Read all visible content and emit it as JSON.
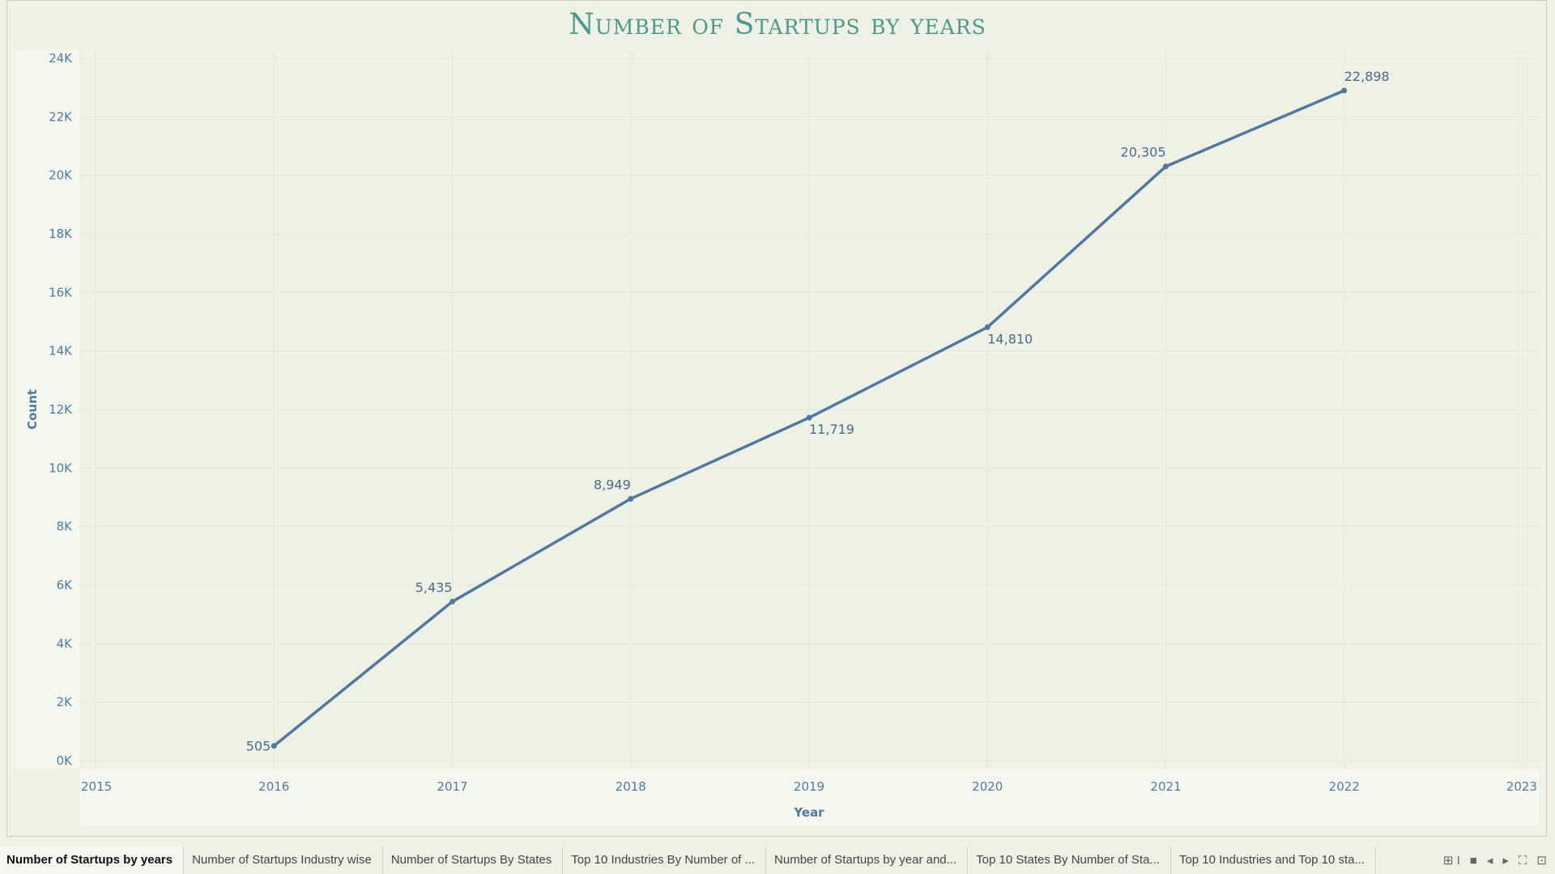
{
  "chart_data": {
    "type": "line",
    "title": "Number of Startups by years",
    "xlabel": "Year",
    "ylabel": "Count",
    "x": [
      2016,
      2017,
      2018,
      2019,
      2020,
      2021,
      2022
    ],
    "x_ticks": [
      "2015",
      "2016",
      "2017",
      "2018",
      "2019",
      "2020",
      "2021",
      "2022",
      "2023"
    ],
    "xlim": [
      2015,
      2023
    ],
    "y_ticks": [
      "0K",
      "2K",
      "4K",
      "6K",
      "8K",
      "10K",
      "12K",
      "14K",
      "16K",
      "18K",
      "20K",
      "22K",
      "24K"
    ],
    "ylim": [
      0,
      24000
    ],
    "series": [
      {
        "values": [
          505,
          5435,
          8949,
          11719,
          14810,
          20305,
          22898
        ],
        "labels": [
          "505",
          "5,435",
          "8,949",
          "11,719",
          "14,810",
          "20,305",
          "22,898"
        ],
        "color": "#4e79a7"
      }
    ],
    "grid": true
  },
  "tabs": [
    {
      "label": "Number of Startups by years",
      "active": true
    },
    {
      "label": "Number of Startups Industry wise"
    },
    {
      "label": "Number of Startups By States"
    },
    {
      "label": "Top 10 Industries By Number of ..."
    },
    {
      "label": "Number of Startups by year and..."
    },
    {
      "label": "Top 10 States By Number of Sta..."
    },
    {
      "label": "Top 10 Industries and Top 10 sta..."
    }
  ],
  "tab_tools": {
    "grid_glyph": "⊞ I",
    "single_glyph": "■",
    "prev_glyph": "◂",
    "next_glyph": "▸",
    "fullscreen_glyph": "⛶",
    "present_glyph": "⊡"
  },
  "colors": {
    "background": "#eef2e4",
    "plot_background": "#eef2e4",
    "axis_band": "#f5f8ee",
    "axis_text": "#4e79a7",
    "title": "#4a9a8c",
    "line": "#4e79a7"
  }
}
